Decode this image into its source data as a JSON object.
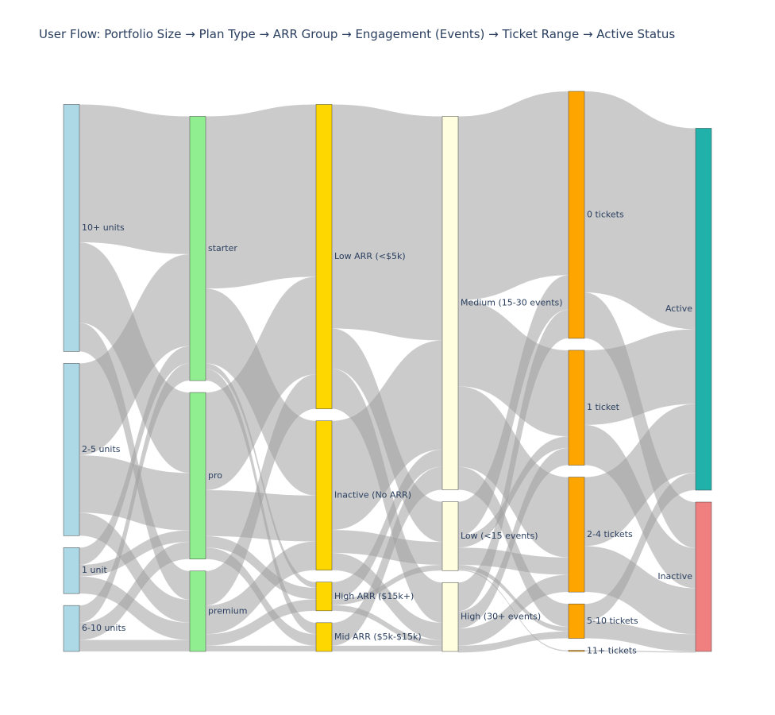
{
  "chart_data": {
    "type": "sankey",
    "title": "User Flow: Portfolio Size → Plan Type → ARR Group → Engagement (Events) → Ticket Range → Active Status",
    "colors": {
      "portfolio": "#add8e6",
      "plan": "#90ee90",
      "arr": "#ffd700",
      "events": "#ffffe0",
      "tickets": "#ffa500",
      "active": "#20b2aa",
      "inactive": "#f08080",
      "link": "#cccccc"
    },
    "columns": [
      [
        "10+ units",
        "2-5 units",
        "1 unit",
        "6-10 units"
      ],
      [
        "starter",
        "pro",
        "premium"
      ],
      [
        "Low ARR (<$5k)",
        "Inactive (No ARR)",
        "High ARR ($15k+)",
        "Mid ARR ($5k-$15k)"
      ],
      [
        "Medium (15-30 events)",
        "Low (<15 events)",
        "High (30+ events)"
      ],
      [
        "0 tickets",
        "1 ticket",
        "2-4 tickets",
        "5-10 tickets",
        "11+ tickets"
      ],
      [
        "Active",
        "Inactive"
      ]
    ],
    "nodes": [
      {
        "id": "10+ units",
        "value": 43
      },
      {
        "id": "2-5 units",
        "value": 30
      },
      {
        "id": "1 unit",
        "value": 8
      },
      {
        "id": "6-10 units",
        "value": 8
      },
      {
        "id": "starter",
        "value": 46
      },
      {
        "id": "pro",
        "value": 29
      },
      {
        "id": "premium",
        "value": 14
      },
      {
        "id": "Low ARR (<$5k)",
        "value": 53
      },
      {
        "id": "Inactive (No ARR)",
        "value": 26
      },
      {
        "id": "High ARR ($15k+)",
        "value": 5
      },
      {
        "id": "Mid ARR ($5k-$15k)",
        "value": 5
      },
      {
        "id": "Medium (15-30 events)",
        "value": 65
      },
      {
        "id": "Low (<15 events)",
        "value": 12
      },
      {
        "id": "High (30+ events)",
        "value": 12
      },
      {
        "id": "0 tickets",
        "value": 43
      },
      {
        "id": "1 ticket",
        "value": 20
      },
      {
        "id": "2-4 tickets",
        "value": 20
      },
      {
        "id": "5-10 tickets",
        "value": 6
      },
      {
        "id": "11+ tickets",
        "value": 0.2
      },
      {
        "id": "Active",
        "value": 63
      },
      {
        "id": "Inactive",
        "value": 26
      }
    ],
    "links": [
      {
        "source": "10+ units",
        "target": "starter",
        "value": 24
      },
      {
        "source": "10+ units",
        "target": "pro",
        "value": 14
      },
      {
        "source": "10+ units",
        "target": "premium",
        "value": 5
      },
      {
        "source": "2-5 units",
        "target": "starter",
        "value": 16
      },
      {
        "source": "2-5 units",
        "target": "pro",
        "value": 10
      },
      {
        "source": "2-5 units",
        "target": "premium",
        "value": 4
      },
      {
        "source": "1 unit",
        "target": "starter",
        "value": 3
      },
      {
        "source": "1 unit",
        "target": "pro",
        "value": 2
      },
      {
        "source": "1 unit",
        "target": "premium",
        "value": 3
      },
      {
        "source": "6-10 units",
        "target": "starter",
        "value": 3
      },
      {
        "source": "6-10 units",
        "target": "pro",
        "value": 3
      },
      {
        "source": "6-10 units",
        "target": "premium",
        "value": 2
      },
      {
        "source": "starter",
        "target": "Low ARR (<$5k)",
        "value": 30
      },
      {
        "source": "starter",
        "target": "Inactive (No ARR)",
        "value": 13
      },
      {
        "source": "starter",
        "target": "High ARR ($15k+)",
        "value": 1
      },
      {
        "source": "starter",
        "target": "Mid ARR ($5k-$15k)",
        "value": 2
      },
      {
        "source": "pro",
        "target": "Low ARR (<$5k)",
        "value": 17
      },
      {
        "source": "pro",
        "target": "Inactive (No ARR)",
        "value": 8
      },
      {
        "source": "pro",
        "target": "High ARR ($15k+)",
        "value": 2
      },
      {
        "source": "pro",
        "target": "Mid ARR ($5k-$15k)",
        "value": 2
      },
      {
        "source": "premium",
        "target": "Low ARR (<$5k)",
        "value": 6
      },
      {
        "source": "premium",
        "target": "Inactive (No ARR)",
        "value": 5
      },
      {
        "source": "premium",
        "target": "High ARR ($15k+)",
        "value": 2
      },
      {
        "source": "premium",
        "target": "Mid ARR ($5k-$15k)",
        "value": 1
      },
      {
        "source": "Low ARR (<$5k)",
        "target": "Medium (15-30 events)",
        "value": 39
      },
      {
        "source": "Low ARR (<$5k)",
        "target": "Low (<15 events)",
        "value": 7
      },
      {
        "source": "Low ARR (<$5k)",
        "target": "High (30+ events)",
        "value": 7
      },
      {
        "source": "Inactive (No ARR)",
        "target": "Medium (15-30 events)",
        "value": 19
      },
      {
        "source": "Inactive (No ARR)",
        "target": "Low (<15 events)",
        "value": 4
      },
      {
        "source": "Inactive (No ARR)",
        "target": "High (30+ events)",
        "value": 3
      },
      {
        "source": "High ARR ($15k+)",
        "target": "Medium (15-30 events)",
        "value": 3
      },
      {
        "source": "High ARR ($15k+)",
        "target": "Low (<15 events)",
        "value": 1
      },
      {
        "source": "High ARR ($15k+)",
        "target": "High (30+ events)",
        "value": 1
      },
      {
        "source": "Mid ARR ($5k-$15k)",
        "target": "Medium (15-30 events)",
        "value": 4
      },
      {
        "source": "Mid ARR ($5k-$15k)",
        "target": "High (30+ events)",
        "value": 1
      },
      {
        "source": "Medium (15-30 events)",
        "target": "0 tickets",
        "value": 32
      },
      {
        "source": "Medium (15-30 events)",
        "target": "1 ticket",
        "value": 15
      },
      {
        "source": "Medium (15-30 events)",
        "target": "2-4 tickets",
        "value": 14
      },
      {
        "source": "Medium (15-30 events)",
        "target": "5-10 tickets",
        "value": 4
      },
      {
        "source": "Low (<15 events)",
        "target": "0 tickets",
        "value": 6
      },
      {
        "source": "Low (<15 events)",
        "target": "1 ticket",
        "value": 2
      },
      {
        "source": "Low (<15 events)",
        "target": "2-4 tickets",
        "value": 3
      },
      {
        "source": "Low (<15 events)",
        "target": "5-10 tickets",
        "value": 0.8
      },
      {
        "source": "Low (<15 events)",
        "target": "11+ tickets",
        "value": 0.2
      },
      {
        "source": "High (30+ events)",
        "target": "0 tickets",
        "value": 5
      },
      {
        "source": "High (30+ events)",
        "target": "1 ticket",
        "value": 3
      },
      {
        "source": "High (30+ events)",
        "target": "2-4 tickets",
        "value": 3
      },
      {
        "source": "High (30+ events)",
        "target": "5-10 tickets",
        "value": 1.2
      },
      {
        "source": "0 tickets",
        "target": "Active",
        "value": 35
      },
      {
        "source": "0 tickets",
        "target": "Inactive",
        "value": 8
      },
      {
        "source": "1 ticket",
        "target": "Active",
        "value": 13
      },
      {
        "source": "1 ticket",
        "target": "Inactive",
        "value": 7
      },
      {
        "source": "2-4 tickets",
        "target": "Active",
        "value": 12
      },
      {
        "source": "2-4 tickets",
        "target": "Inactive",
        "value": 8
      },
      {
        "source": "5-10 tickets",
        "target": "Active",
        "value": 3
      },
      {
        "source": "5-10 tickets",
        "target": "Inactive",
        "value": 3
      },
      {
        "source": "11+ tickets",
        "target": "Inactive",
        "value": 0.2
      }
    ]
  }
}
